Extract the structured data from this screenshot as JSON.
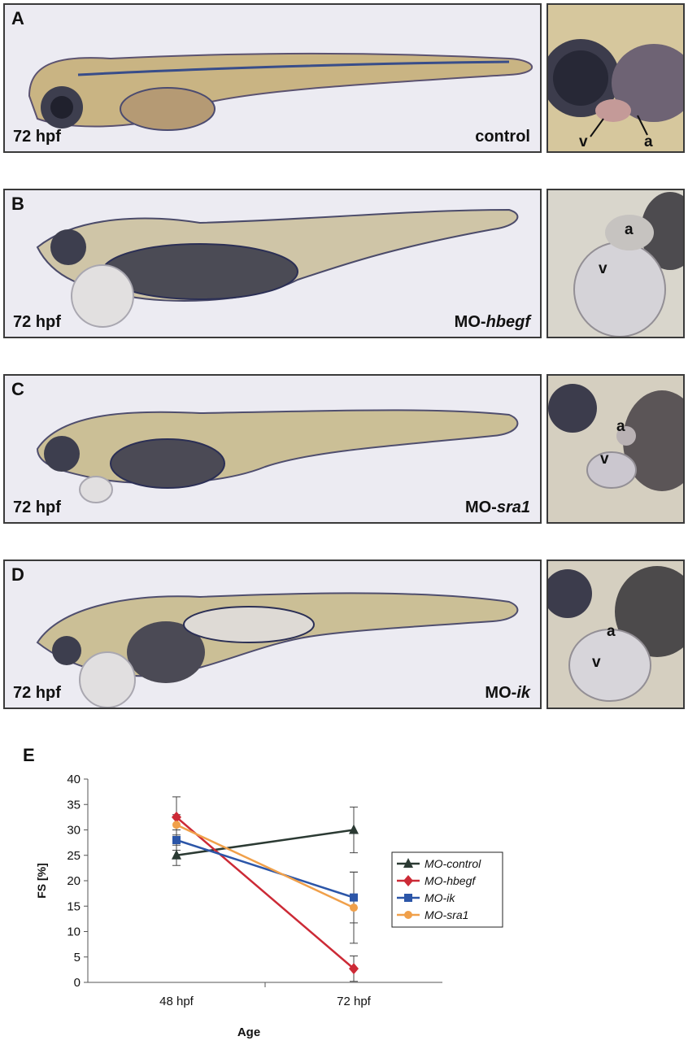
{
  "panels": [
    {
      "letter": "A",
      "age": "72 hpf",
      "condition_prefix": "",
      "condition_italic": "control",
      "zoom_labels": {
        "v": "v",
        "a": "a"
      }
    },
    {
      "letter": "B",
      "age": "72 hpf",
      "condition_prefix": "MO-",
      "condition_italic": "hbegf",
      "zoom_labels": {
        "v": "v",
        "a": "a"
      }
    },
    {
      "letter": "C",
      "age": "72 hpf",
      "condition_prefix": "MO-",
      "condition_italic": "sra1",
      "zoom_labels": {
        "v": "v",
        "a": "a"
      }
    },
    {
      "letter": "D",
      "age": "72 hpf",
      "condition_prefix": "MO-",
      "condition_italic": "ik",
      "zoom_labels": {
        "v": "v",
        "a": "a"
      }
    }
  ],
  "chart_panel_letter": "E",
  "chart_data": {
    "type": "line",
    "categories": [
      "48 hpf",
      "72 hpf"
    ],
    "xlabel": "Age",
    "ylabel": "FS [%]",
    "ylim": [
      0,
      40
    ],
    "yticks": [
      0,
      5,
      10,
      15,
      20,
      25,
      30,
      35,
      40
    ],
    "legend_position": "right",
    "series": [
      {
        "name": "MO-control",
        "values": [
          25,
          30
        ],
        "error": [
          2,
          4.5
        ],
        "color": "#2b3a33",
        "marker": "triangle"
      },
      {
        "name": "MO-hbegf",
        "values": [
          32.5,
          2.7
        ],
        "error": [
          4,
          2.5
        ],
        "color": "#cc2a36",
        "marker": "diamond"
      },
      {
        "name": "MO-ik",
        "values": [
          28,
          16.7
        ],
        "error": [
          2,
          5
        ],
        "color": "#2c56a8",
        "marker": "square"
      },
      {
        "name": "MO-sra1",
        "values": [
          31,
          14.7
        ],
        "error": [
          2,
          7
        ],
        "color": "#f0a04a",
        "marker": "circle"
      }
    ]
  }
}
